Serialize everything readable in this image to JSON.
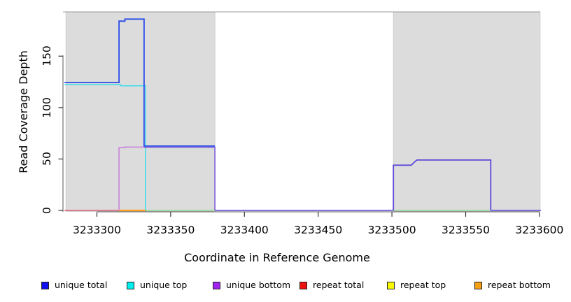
{
  "chart_data": {
    "type": "line",
    "title": "",
    "xlabel": "Coordinate in Reference Genome",
    "ylabel": "Read Coverage Depth",
    "xlim": [
      3233277,
      3233601
    ],
    "ylim": [
      0,
      193
    ],
    "grid": false,
    "plot_background": "#FFFFFF",
    "shading_color": "#DCDCDC",
    "shaded_regions": [
      [
        3233279,
        3233380
      ],
      [
        3233501,
        3233600.5
      ]
    ],
    "x_ticks": [
      "3233300",
      "3233350",
      "3233400",
      "3233450",
      "3233500",
      "3233550",
      "3233600"
    ],
    "x_tick_values": [
      3233300,
      3233350,
      3233400,
      3233450,
      3233500,
      3233550,
      3233600
    ],
    "y_ticks": [
      "0",
      "50",
      "100",
      "150"
    ],
    "y_tick_values": [
      0,
      50,
      100,
      150
    ],
    "legend": [
      {
        "label": "unique total",
        "color": "#1010EE"
      },
      {
        "label": "unique top",
        "color": "#00EEEE"
      },
      {
        "label": "unique bottom",
        "color": "#A125EF"
      },
      {
        "label": "repeat total",
        "color": "#EE1111"
      },
      {
        "label": "repeat top",
        "color": "#F8F800"
      },
      {
        "label": "repeat bottom",
        "color": "#F5A014"
      }
    ],
    "legend_position": "bottom",
    "series": [
      {
        "name": "unique total",
        "color": "#1010EE",
        "points": [
          [
            3233278,
            124
          ],
          [
            3233315,
            124
          ],
          [
            3233315,
            184
          ],
          [
            3233319,
            184
          ],
          [
            3233319,
            186
          ],
          [
            3233332,
            186
          ],
          [
            3233332,
            62
          ],
          [
            3233380,
            62
          ],
          [
            3233380,
            0
          ],
          [
            3233501,
            0
          ],
          [
            3233501,
            44
          ],
          [
            3233513,
            44
          ],
          [
            3233517,
            49
          ],
          [
            3233567,
            49
          ],
          [
            3233567,
            0
          ],
          [
            3233600,
            0
          ]
        ]
      },
      {
        "name": "unique top",
        "color": "#00EEEE",
        "points": [
          [
            3233278,
            122
          ],
          [
            3233316,
            122
          ],
          [
            3233316,
            121
          ],
          [
            3233333,
            121
          ],
          [
            3233333,
            0
          ],
          [
            3233600,
            0
          ]
        ]
      },
      {
        "name": "unique bottom",
        "color": "#A125EF",
        "points": [
          [
            3233278,
            0
          ],
          [
            3233315,
            0
          ],
          [
            3233315,
            61
          ],
          [
            3233380,
            61
          ],
          [
            3233380,
            0
          ],
          [
            3233501,
            0
          ],
          [
            3233501,
            44
          ],
          [
            3233513,
            44
          ],
          [
            3233517,
            49
          ],
          [
            3233567,
            49
          ],
          [
            3233567,
            0
          ],
          [
            3233600,
            0
          ]
        ]
      },
      {
        "name": "repeat total",
        "color": "#EE1111",
        "points": [
          [
            3233278,
            0
          ],
          [
            3233600,
            0
          ]
        ]
      },
      {
        "name": "repeat top",
        "color": "#F8F800",
        "points": [
          [
            3233278,
            0
          ],
          [
            3233600,
            0
          ]
        ]
      },
      {
        "name": "repeat bottom",
        "color": "#F5A014",
        "points": [
          [
            3233278,
            0
          ],
          [
            3233600,
            0
          ]
        ]
      }
    ],
    "visible_segments": [
      {
        "name": "repeat-total-zero-line",
        "color": "#E25B75",
        "w": 1.4,
        "pts": [
          [
            3233278,
            0
          ],
          [
            3233316,
            0
          ]
        ]
      },
      {
        "name": "repeat-bottom-zero-line",
        "color": "#FFA11E",
        "w": 2.2,
        "pts": [
          [
            3233315,
            0
          ],
          [
            3233333,
            0
          ]
        ]
      },
      {
        "name": "zero-line-green-left",
        "color": "#90D895",
        "w": 1.4,
        "pts": [
          [
            3233333,
            0
          ],
          [
            3233380,
            0
          ]
        ]
      },
      {
        "name": "zero-line-green-right",
        "color": "#90D895",
        "w": 1.4,
        "pts": [
          [
            3233501,
            0
          ],
          [
            3233567,
            0
          ]
        ]
      },
      {
        "name": "zero-line-violet-gap",
        "color": "#6F5CDC",
        "w": 1.7,
        "pts": [
          [
            3233380,
            0
          ],
          [
            3233501,
            0
          ]
        ]
      },
      {
        "name": "zero-line-violet-right",
        "color": "#6F5CDC",
        "w": 1.7,
        "pts": [
          [
            3233567,
            0
          ],
          [
            3233601,
            0
          ]
        ]
      },
      {
        "name": "unique-top-trace",
        "color": "#3BDDE8",
        "w": 1.5,
        "pts": [
          [
            3233278,
            122.3
          ],
          [
            3233316,
            122.3
          ],
          [
            3233316,
            121.2
          ],
          [
            3233333,
            121.2
          ],
          [
            3233333,
            0.3
          ]
        ]
      },
      {
        "name": "unique-bottom-trace",
        "color": "#C77EDC",
        "w": 1.5,
        "pts": [
          [
            3233315,
            0.3
          ],
          [
            3233315,
            61
          ],
          [
            3233319,
            61
          ],
          [
            3233319,
            61.6
          ],
          [
            3233332,
            61.6
          ]
        ]
      },
      {
        "name": "unique-bottom-trace-covered",
        "color": "#7A5CD8",
        "w": 1.6,
        "pts": [
          [
            3233332,
            61.4
          ],
          [
            3233380,
            61.4
          ],
          [
            3233380,
            0.3
          ]
        ]
      },
      {
        "name": "unique-total-trace",
        "color": "#2B4BE8",
        "w": 1.8,
        "pts": [
          [
            3233278,
            124.3
          ],
          [
            3233315,
            124.3
          ],
          [
            3233315,
            184
          ],
          [
            3233319,
            184
          ],
          [
            3233319,
            186
          ],
          [
            3233332,
            186
          ],
          [
            3233332,
            62.6
          ],
          [
            3233380,
            62.6
          ]
        ]
      },
      {
        "name": "right-block-step-trace",
        "color": "#5B49D8",
        "w": 1.8,
        "pts": [
          [
            3233501,
            0.3
          ],
          [
            3233501,
            44
          ],
          [
            3233513,
            44
          ],
          [
            3233514,
            45.2
          ],
          [
            3233515,
            46.6
          ],
          [
            3233516,
            48
          ],
          [
            3233517,
            49
          ],
          [
            3233567,
            49
          ],
          [
            3233567,
            0.3
          ]
        ]
      }
    ]
  }
}
